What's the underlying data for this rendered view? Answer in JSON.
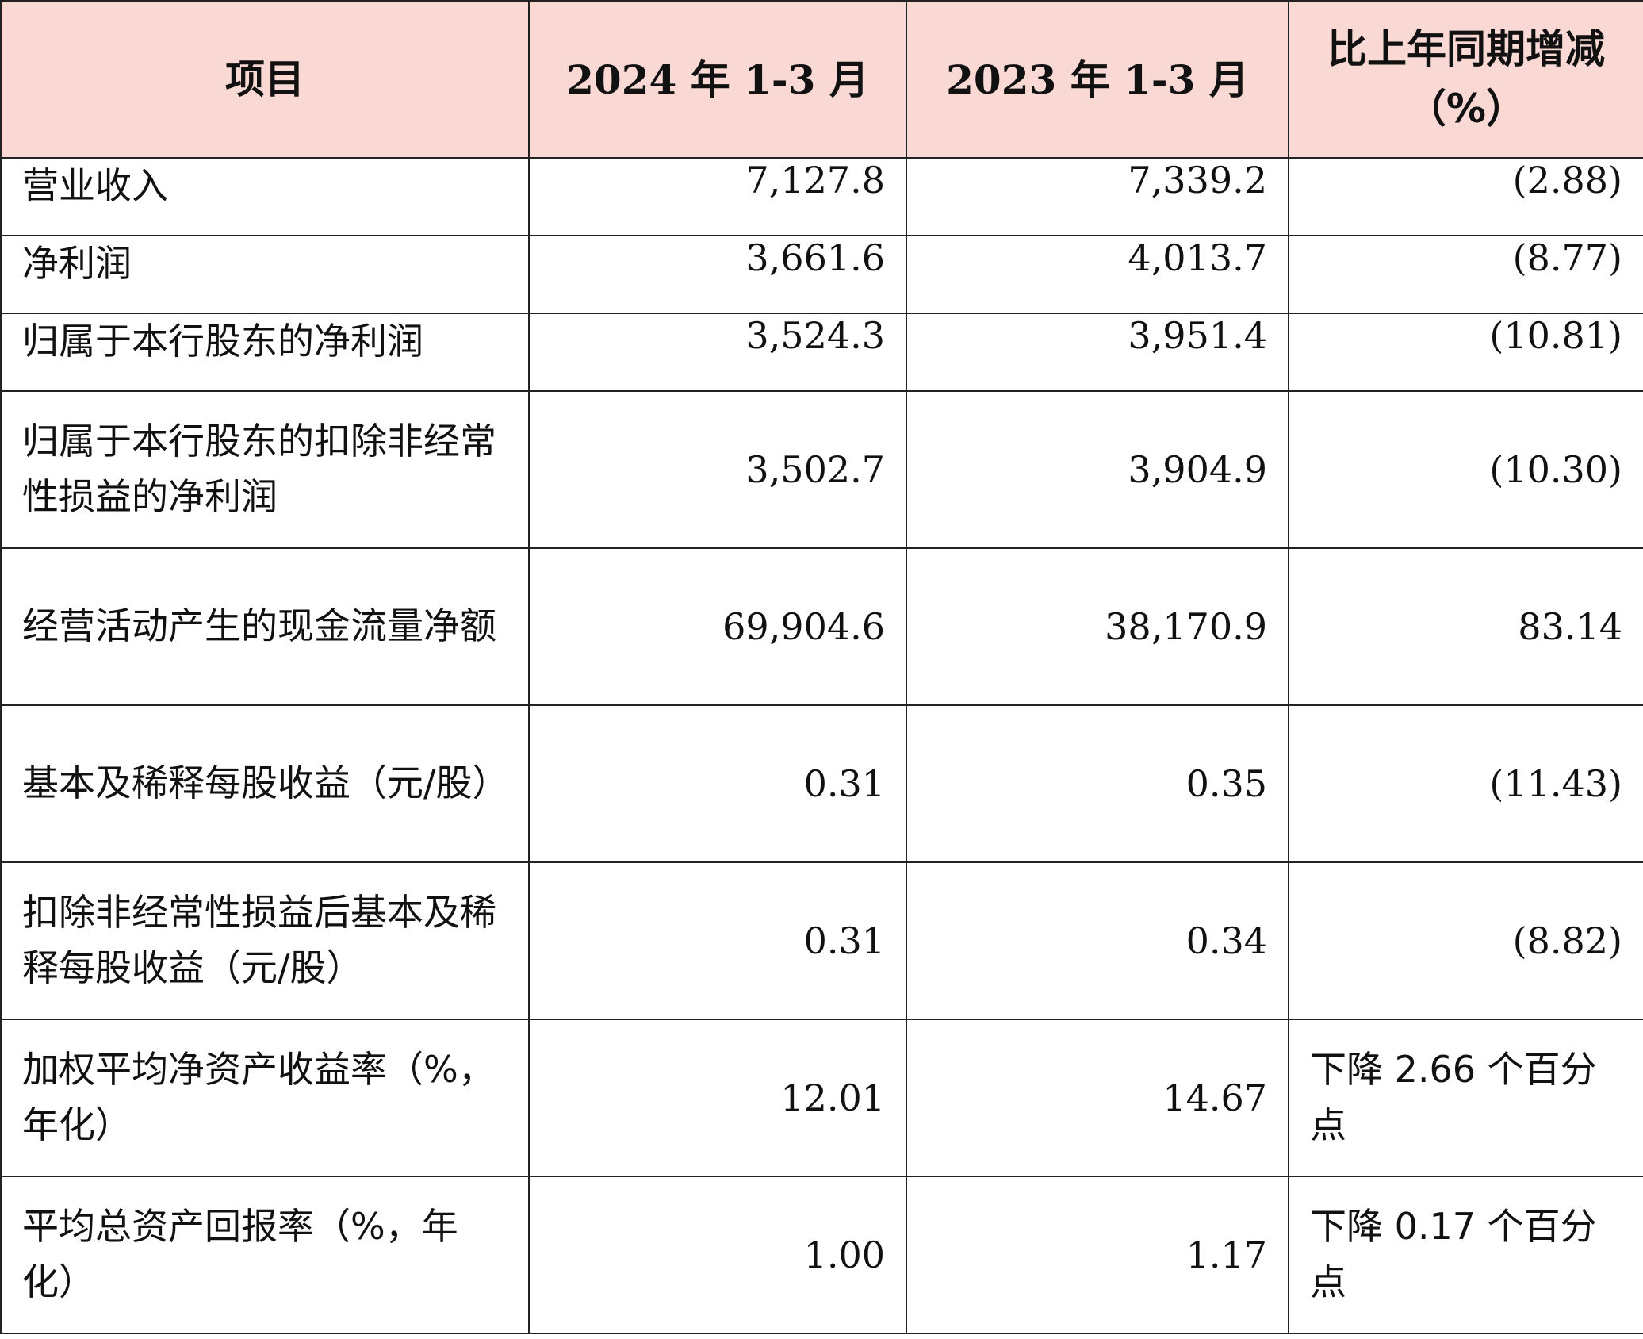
{
  "table": {
    "headers": {
      "item": "项目",
      "current": "2024 年 1-3 月",
      "previous": "2023 年 1-3 月",
      "change_line1": "比上年同期增减",
      "change_line2": "（%）"
    },
    "rows": [
      {
        "label": "营业收入",
        "current": "7,127.8",
        "previous": "7,339.2",
        "change": "(2.88)"
      },
      {
        "label": "净利润",
        "current": "3,661.6",
        "previous": "4,013.7",
        "change": "(8.77)"
      },
      {
        "label": "归属于本行股东的净利润",
        "current": "3,524.3",
        "previous": "3,951.4",
        "change": "(10.81)"
      },
      {
        "label": "归属于本行股东的扣除非经常性损益的净利润",
        "current": "3,502.7",
        "previous": "3,904.9",
        "change": "(10.30)"
      },
      {
        "label": "经营活动产生的现金流量净额",
        "current": "69,904.6",
        "previous": "38,170.9",
        "change": "83.14"
      },
      {
        "label": "基本及稀释每股收益（元/股）",
        "current": "0.31",
        "previous": "0.35",
        "change": "(11.43)"
      },
      {
        "label": "扣除非经常性损益后基本及稀释每股收益（元/股）",
        "current": "0.31",
        "previous": "0.34",
        "change": "(8.82)"
      },
      {
        "label": "加权平均净资产收益率（%，年化）",
        "current": "12.01",
        "previous": "14.67",
        "change": "下降 2.66 个百分点"
      },
      {
        "label": "平均总资产回报率（%，年化）",
        "current": "1.00",
        "previous": "1.17",
        "change": "下降 0.17 个百分点"
      }
    ]
  }
}
